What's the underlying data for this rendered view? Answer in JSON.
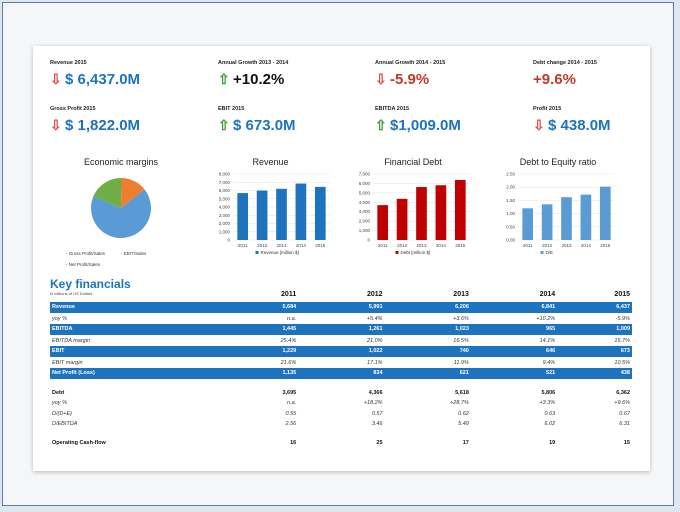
{
  "kpis": [
    {
      "label": "Revenue 2015",
      "value": "$ 6,437.0M",
      "arrow": "⇩",
      "dir": "down",
      "color": "blue"
    },
    {
      "label": "Annual Growth 2013 - 2014",
      "value": "+10.2%",
      "arrow": "⇧",
      "dir": "up",
      "color": "black"
    },
    {
      "label": "Annual Growth 2014 - 2015",
      "value": "-5.9%",
      "arrow": "⇩",
      "dir": "down",
      "color": "red"
    },
    {
      "label": "Debt change 2014 - 2015",
      "value": "+9.6%",
      "arrow": "",
      "dir": "none",
      "color": "red"
    },
    {
      "label": "Gross Profit 2015",
      "value": "$ 1,822.0M",
      "arrow": "⇩",
      "dir": "down",
      "color": "blue"
    },
    {
      "label": "EBIT 2015",
      "value": "$ 673.0M",
      "arrow": "⇧",
      "dir": "up",
      "color": "blue"
    },
    {
      "label": "EBITDA 2015",
      "value": "$1,009.0M",
      "arrow": "⇧",
      "dir": "up",
      "color": "blue"
    },
    {
      "label": "Profit 2015",
      "value": "$ 438.0M",
      "arrow": "⇩",
      "dir": "down",
      "color": "blue"
    }
  ],
  "chart_data": [
    {
      "type": "pie",
      "title": "Economic margins",
      "labels": [
        "Gross Profit/Sales",
        "EBIT/Sales",
        "Net Profit/Sales"
      ],
      "values": [
        67,
        19,
        14
      ],
      "colors": [
        "#5b9bd5",
        "#70ad47",
        "#ed7d31"
      ]
    },
    {
      "type": "bar",
      "title": "Revenue",
      "categories": [
        "2011",
        "2012",
        "2013",
        "2014",
        "2015"
      ],
      "series": [
        {
          "name": "Revenue [million $]",
          "values": [
            5684,
            5991,
            6206,
            6841,
            6437
          ]
        }
      ],
      "ylim": [
        0,
        8000
      ],
      "yticks": [
        "8,000",
        "7,000",
        "6,000",
        "5,000",
        "4,000",
        "3,000",
        "2,000",
        "1,000",
        "0"
      ],
      "color": "#1e73be"
    },
    {
      "type": "bar",
      "title": "Financial Debt",
      "categories": [
        "2011",
        "2012",
        "2013",
        "2014",
        "2015"
      ],
      "series": [
        {
          "name": "Debt [million $]",
          "values": [
            3695,
            4366,
            5618,
            5806,
            6362
          ]
        }
      ],
      "ylim": [
        0,
        7000
      ],
      "yticks": [
        "7,000",
        "6,000",
        "5,000",
        "4,000",
        "3,000",
        "2,000",
        "1,000",
        "0"
      ],
      "color": "#c00000"
    },
    {
      "type": "bar",
      "title": "Debt to Equity ratio",
      "categories": [
        "2011",
        "2012",
        "2013",
        "2014",
        "2015"
      ],
      "series": [
        {
          "name": "D/E",
          "values": [
            1.2,
            1.35,
            1.62,
            1.72,
            2.02
          ]
        }
      ],
      "ylim": [
        0,
        2.5
      ],
      "yticks": [
        "2.50",
        "2.00",
        "1.50",
        "1.00",
        "0.50",
        "0.00"
      ],
      "color": "#5b9bd5"
    }
  ],
  "table": {
    "title": "Key financials",
    "subtitle": "in millions of US Dollars",
    "years": [
      "2011",
      "2012",
      "2013",
      "2014",
      "2015"
    ],
    "rows": [
      {
        "style": "band",
        "label": "Revenue",
        "values": [
          "5,684",
          "5,991",
          "6,206",
          "6,841",
          "6,437"
        ]
      },
      {
        "style": "ital",
        "label": "yoy %",
        "values": [
          "n.a.",
          "+5.4%",
          "+3.6%",
          "+10.2%",
          "-5.9%"
        ]
      },
      {
        "style": "band",
        "label": "EBITDA",
        "values": [
          "1,445",
          "1,261",
          "1,023",
          "965",
          "1,009"
        ]
      },
      {
        "style": "ital",
        "label": "EBITDA margin",
        "values": [
          "25.4%",
          "21.0%",
          "16.5%",
          "14.1%",
          "15.7%"
        ]
      },
      {
        "style": "band",
        "label": "EBIT",
        "values": [
          "1,229",
          "1,022",
          "740",
          "646",
          "673"
        ]
      },
      {
        "style": "ital",
        "label": "EBIT margin",
        "values": [
          "21.6%",
          "17.1%",
          "11.9%",
          "9.4%",
          "10.5%"
        ]
      },
      {
        "style": "band",
        "label": "Net Profit (Loss)",
        "values": [
          "1,135",
          "834",
          "621",
          "521",
          "438"
        ]
      },
      {
        "style": "gap",
        "label": "",
        "values": [
          "",
          "",
          "",
          "",
          ""
        ]
      },
      {
        "style": "bold",
        "label": "Debt",
        "values": [
          "3,695",
          "4,366",
          "5,618",
          "5,806",
          "6,362"
        ]
      },
      {
        "style": "ital",
        "label": "yoy %",
        "values": [
          "n.a.",
          "+18.2%",
          "+28.7%",
          "+3.3%",
          "+9.6%"
        ]
      },
      {
        "style": "ital",
        "label": "D/(D+E)",
        "values": [
          "0.55",
          "0.57",
          "0.62",
          "0.63",
          "0.67"
        ]
      },
      {
        "style": "ital",
        "label": "D/EBITDA",
        "values": [
          "2.56",
          "3.46",
          "5.49",
          "6.02",
          "6.31"
        ]
      },
      {
        "style": "gap",
        "label": "",
        "values": [
          "",
          "",
          "",
          "",
          ""
        ]
      },
      {
        "style": "bold",
        "label": "Operating Cash-flow",
        "values": [
          "16",
          "25",
          "17",
          "19",
          "15"
        ]
      }
    ]
  }
}
